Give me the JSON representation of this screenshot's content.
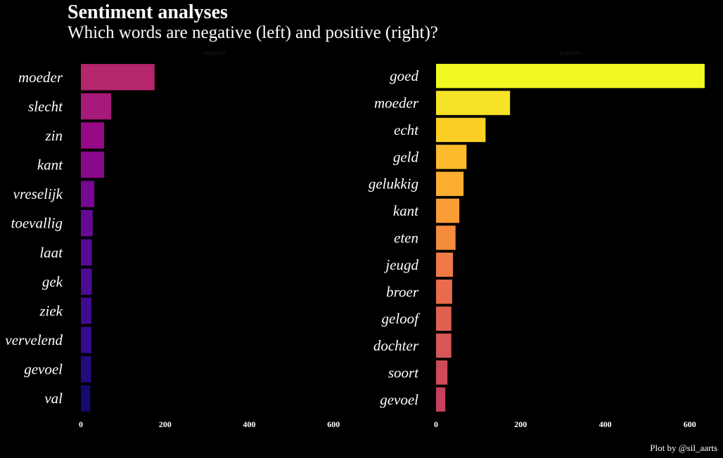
{
  "title": "Sentiment analyses",
  "subtitle": "Which words are negative (left) and positive (right)?",
  "caption": "Plot by @sil_aarts",
  "chart_data": [
    {
      "type": "bar",
      "orientation": "horizontal",
      "panel": "negative",
      "categories": [
        "moeder",
        "slecht",
        "zin",
        "kant",
        "vreselijk",
        "toevallig",
        "laat",
        "gek",
        "ziek",
        "vervelend",
        "gevoel",
        "val"
      ],
      "values": [
        175,
        72,
        55,
        55,
        32,
        28,
        26,
        26,
        25,
        25,
        24,
        22
      ],
      "colors": [
        "#b5266d",
        "#a61a7a",
        "#960a87",
        "#8a088c",
        "#760891",
        "#650a94",
        "#580a94",
        "#4c0b92",
        "#3f0b8f",
        "#330b8c",
        "#25097f",
        "#140a70"
      ],
      "xlim": [
        0,
        640
      ],
      "xticks": [
        0,
        200,
        400,
        600
      ],
      "grid": false,
      "legend": "none"
    },
    {
      "type": "bar",
      "orientation": "horizontal",
      "panel": "positive",
      "categories": [
        "goed",
        "moeder",
        "echt",
        "geld",
        "gelukkig",
        "kant",
        "eten",
        "jeugd",
        "broer",
        "geloof",
        "dochter",
        "soort",
        "gevoel"
      ],
      "values": [
        635,
        175,
        117,
        72,
        65,
        55,
        46,
        40,
        38,
        36,
        36,
        27,
        22
      ],
      "colors": [
        "#f0f921",
        "#f6e226",
        "#fad024",
        "#fdba2a",
        "#fdae2f",
        "#fb9d35",
        "#f58b3e",
        "#ef7a46",
        "#e86b4d",
        "#e0604f",
        "#d85655",
        "#cf4b59",
        "#c6415c"
      ],
      "xlim": [
        0,
        640
      ],
      "xticks": [
        0,
        200,
        400,
        600
      ],
      "grid": false,
      "legend": "none"
    }
  ]
}
